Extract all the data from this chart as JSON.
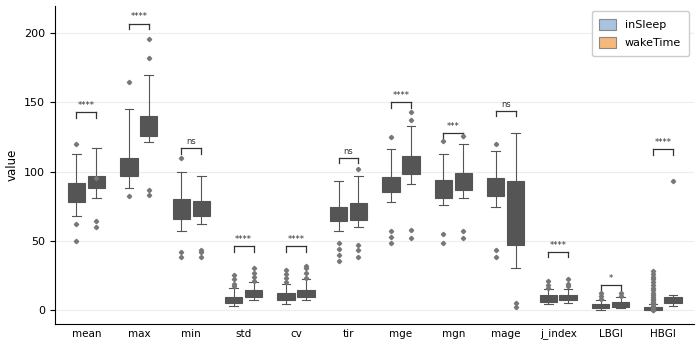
{
  "categories": [
    "mean",
    "max",
    "min",
    "std",
    "cv",
    "tir",
    "mge",
    "mgn",
    "mage",
    "j_index",
    "LBGI",
    "HBGI"
  ],
  "sleep_color": "#a8c4e0",
  "wake_color": "#f5b87a",
  "flier_color": "#777777",
  "line_color": "#555555",
  "significance": [
    "****",
    "****",
    "ns",
    "****",
    "****",
    "ns",
    "****",
    "***",
    "ns",
    "****",
    "*",
    "****"
  ],
  "ylabel": "value",
  "ylim": [
    -10,
    220
  ],
  "yticks": [
    0,
    50,
    100,
    150,
    200
  ],
  "legend_labels": [
    "inSleep",
    "wakeTime"
  ],
  "box_data": {
    "sleep": {
      "mean": [
        68,
        78,
        85,
        92,
        113
      ],
      "max": [
        88,
        97,
        101,
        110,
        145
      ],
      "min": [
        57,
        66,
        73,
        80,
        100
      ],
      "std": [
        3,
        5,
        7,
        9,
        16
      ],
      "cv": [
        4,
        7,
        9,
        12,
        19
      ],
      "tir": [
        57,
        64,
        68,
        74,
        93
      ],
      "mge": [
        78,
        85,
        90,
        96,
        116
      ],
      "mgn": [
        76,
        81,
        87,
        94,
        113
      ],
      "mage": [
        74,
        82,
        87,
        95,
        115
      ],
      "j_index": [
        4,
        6,
        8,
        11,
        15
      ],
      "LBGI": [
        0,
        1,
        2,
        4,
        7
      ],
      "HBGI": [
        0,
        0,
        1,
        2,
        4
      ]
    },
    "wake": {
      "mean": [
        81,
        88,
        92,
        97,
        117
      ],
      "max": [
        121,
        126,
        133,
        140,
        170
      ],
      "min": [
        62,
        68,
        73,
        79,
        97
      ],
      "std": [
        7,
        9,
        11,
        14,
        20
      ],
      "cv": [
        7,
        9,
        11,
        14,
        22
      ],
      "tir": [
        60,
        65,
        70,
        77,
        97
      ],
      "mge": [
        91,
        98,
        104,
        111,
        133
      ],
      "mgn": [
        81,
        87,
        93,
        99,
        120
      ],
      "mage": [
        30,
        47,
        84,
        93,
        128
      ],
      "j_index": [
        5,
        7,
        9,
        11,
        15
      ],
      "LBGI": [
        1,
        2,
        4,
        6,
        9
      ],
      "HBGI": [
        3,
        5,
        7,
        9,
        11
      ]
    }
  },
  "fliers_sleep": {
    "mean": [
      50,
      62,
      120
    ],
    "max": [
      82,
      165
    ],
    "min": [
      38,
      42,
      110
    ],
    "std": [
      17,
      19,
      22,
      25
    ],
    "cv": [
      20,
      23,
      26,
      29
    ],
    "tir": [
      35,
      40,
      44,
      48
    ],
    "mge": [
      48,
      53,
      57,
      125
    ],
    "mgn": [
      48,
      55,
      122
    ],
    "mage": [
      38,
      43,
      120
    ],
    "j_index": [
      16,
      18,
      21
    ],
    "LBGI": [
      8,
      10,
      12
    ],
    "HBGI": [
      0,
      0,
      1,
      1,
      2,
      3,
      4,
      5,
      6,
      7,
      8,
      9,
      11,
      12,
      14,
      16,
      18,
      20,
      22,
      24,
      26,
      28
    ]
  },
  "fliers_wake": {
    "mean": [
      60,
      64,
      95
    ],
    "max": [
      83,
      87,
      182,
      196
    ],
    "min": [
      38,
      42,
      43
    ],
    "std": [
      21,
      24,
      27,
      30
    ],
    "cv": [
      23,
      27,
      30,
      32
    ],
    "tir": [
      38,
      43,
      47,
      102
    ],
    "mge": [
      52,
      58,
      137,
      143
    ],
    "mgn": [
      52,
      57,
      126
    ],
    "mage": [
      2,
      5
    ],
    "j_index": [
      17,
      19,
      22
    ],
    "LBGI": [
      10,
      12
    ],
    "HBGI": [
      93
    ]
  },
  "bracket_heights": {
    "mean": 143,
    "max": 207,
    "min": 117,
    "std": 46,
    "cv": 46,
    "tir": 110,
    "mge": 150,
    "mgn": 128,
    "mage": 144,
    "j_index": 42,
    "LBGI": 18,
    "HBGI": 116
  }
}
